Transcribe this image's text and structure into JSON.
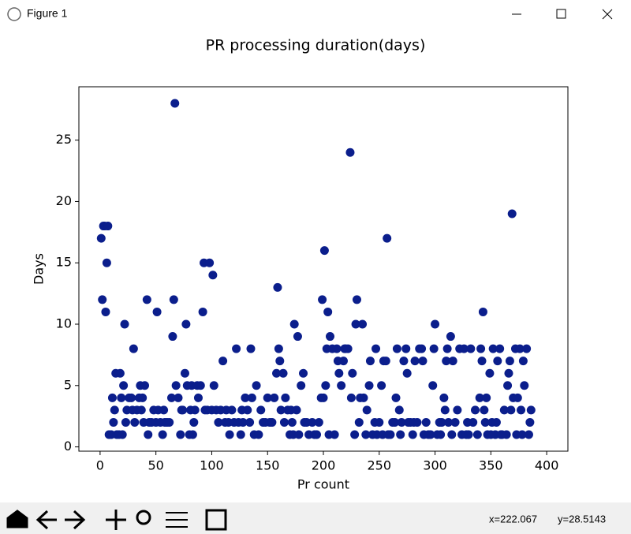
{
  "window": {
    "title": "Figure 1",
    "status_x": "x=222.067",
    "status_y": "y=28.5143"
  },
  "chart_data": {
    "type": "scatter",
    "title": "PR processing duration(days)",
    "x_label": "Pr count",
    "y_label": "Days",
    "color": "#0b1e8c",
    "xlim": [
      -19,
      419
    ],
    "ylim": [
      -0.35,
      29.35
    ],
    "xticks": [
      0,
      50,
      100,
      150,
      200,
      250,
      300,
      350,
      400
    ],
    "yticks": [
      0,
      5,
      10,
      15,
      20,
      25
    ],
    "x": [
      1,
      2,
      3,
      4,
      5,
      6,
      7,
      8,
      10,
      11,
      12,
      13,
      14,
      15,
      17,
      18,
      19,
      20,
      21,
      22,
      23,
      24,
      26,
      28,
      29,
      30,
      31,
      33,
      35,
      36,
      37,
      38,
      39,
      40,
      42,
      43,
      44,
      46,
      48,
      50,
      51,
      52,
      54,
      56,
      57,
      58,
      60,
      62,
      64,
      65,
      66,
      67,
      68,
      70,
      72,
      73,
      74,
      76,
      77,
      78,
      80,
      81,
      82,
      83,
      84,
      85,
      87,
      88,
      90,
      92,
      93,
      94,
      96,
      98,
      100,
      101,
      102,
      104,
      106,
      108,
      110,
      112,
      113,
      115,
      116,
      118,
      120,
      122,
      124,
      126,
      127,
      128,
      130,
      132,
      134,
      135,
      136,
      138,
      140,
      142,
      144,
      146,
      148,
      150,
      152,
      154,
      156,
      158,
      159,
      160,
      161,
      162,
      164,
      165,
      166,
      168,
      170,
      171,
      172,
      173,
      174,
      176,
      177,
      178,
      180,
      182,
      183,
      185,
      187,
      190,
      192,
      194,
      196,
      198,
      199,
      200,
      201,
      202,
      203,
      204,
      205,
      206,
      208,
      210,
      212,
      213,
      214,
      216,
      218,
      219,
      220,
      222,
      224,
      225,
      226,
      228,
      229,
      230,
      232,
      233,
      235,
      236,
      238,
      239,
      241,
      242,
      244,
      246,
      247,
      248,
      250,
      252,
      253,
      254,
      256,
      257,
      258,
      260,
      262,
      264,
      265,
      266,
      268,
      269,
      270,
      272,
      274,
      275,
      276,
      278,
      280,
      281,
      282,
      284,
      286,
      288,
      289,
      290,
      292,
      294,
      296,
      298,
      299,
      300,
      302,
      304,
      305,
      306,
      308,
      309,
      310,
      311,
      312,
      314,
      315,
      316,
      318,
      320,
      322,
      324,
      326,
      328,
      329,
      330,
      332,
      334,
      336,
      338,
      340,
      341,
      342,
      343,
      344,
      345,
      346,
      347,
      349,
      350,
      351,
      352,
      354,
      355,
      356,
      358,
      359,
      360,
      362,
      364,
      365,
      366,
      367,
      368,
      369,
      370,
      372,
      373,
      374,
      376,
      377,
      378,
      379,
      380,
      382,
      384,
      385,
      386
    ],
    "values": [
      17,
      12,
      18,
      18,
      11,
      15,
      18,
      1,
      1,
      4,
      2,
      3,
      6,
      1,
      1,
      6,
      4,
      1,
      5,
      10,
      2,
      3,
      4,
      4,
      3,
      8,
      2,
      3,
      4,
      5,
      3,
      4,
      2,
      5,
      12,
      1,
      2,
      2,
      3,
      2,
      11,
      3,
      2,
      1,
      3,
      2,
      2,
      2,
      4,
      9,
      12,
      28,
      5,
      4,
      1,
      3,
      3,
      6,
      10,
      5,
      1,
      3,
      5,
      1,
      2,
      3,
      5,
      4,
      5,
      11,
      15,
      3,
      3,
      15,
      3,
      14,
      5,
      3,
      2,
      3,
      7,
      2,
      3,
      2,
      1,
      3,
      2,
      8,
      2,
      1,
      3,
      2,
      4,
      3,
      2,
      8,
      4,
      1,
      5,
      1,
      3,
      2,
      2,
      4,
      2,
      2,
      4,
      6,
      13,
      8,
      7,
      3,
      6,
      2,
      4,
      3,
      1,
      3,
      2,
      1,
      10,
      3,
      9,
      1,
      5,
      6,
      2,
      2,
      1,
      2,
      1,
      1,
      2,
      4,
      12,
      4,
      16,
      5,
      8,
      11,
      1,
      9,
      8,
      1,
      8,
      7,
      6,
      5,
      7,
      8,
      8,
      8,
      24,
      4,
      6,
      1,
      10,
      12,
      2,
      4,
      10,
      4,
      1,
      3,
      5,
      7,
      1,
      2,
      8,
      1,
      2,
      5,
      1,
      7,
      7,
      17,
      1,
      1,
      2,
      2,
      4,
      8,
      3,
      1,
      2,
      7,
      8,
      6,
      2,
      2,
      1,
      2,
      7,
      2,
      8,
      8,
      7,
      1,
      2,
      1,
      1,
      5,
      8,
      10,
      1,
      2,
      1,
      2,
      4,
      3,
      7,
      8,
      2,
      9,
      1,
      7,
      2,
      3,
      8,
      1,
      8,
      1,
      2,
      1,
      8,
      2,
      3,
      1,
      4,
      8,
      7,
      11,
      3,
      2,
      4,
      1,
      6,
      1,
      2,
      8,
      1,
      2,
      7,
      8,
      1,
      1,
      3,
      1,
      5,
      6,
      7,
      3,
      19,
      4,
      8,
      1,
      4,
      8,
      3,
      1,
      7,
      5,
      8,
      1,
      2,
      3
    ]
  }
}
